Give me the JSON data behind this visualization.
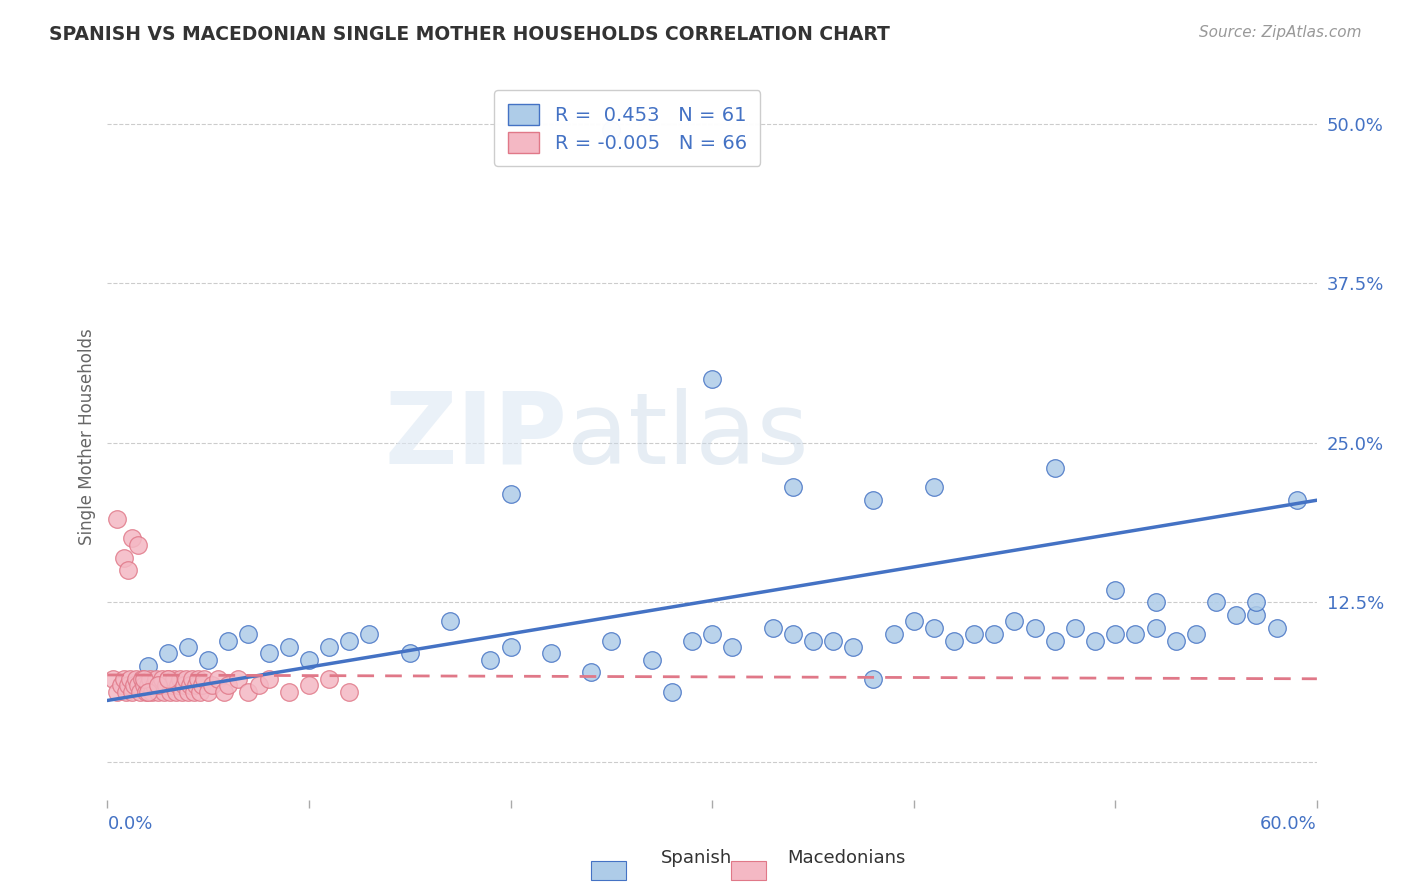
{
  "title": "SPANISH VS MACEDONIAN SINGLE MOTHER HOUSEHOLDS CORRELATION CHART",
  "source": "Source: ZipAtlas.com",
  "ylabel": "Single Mother Households",
  "yticks": [
    0.0,
    0.125,
    0.25,
    0.375,
    0.5
  ],
  "ytick_labels": [
    "",
    "12.5%",
    "25.0%",
    "37.5%",
    "50.0%"
  ],
  "xlim": [
    0.0,
    0.6
  ],
  "ylim": [
    -0.03,
    0.54
  ],
  "legend_R_spanish": "0.453",
  "legend_N_spanish": "61",
  "legend_R_macedonian": "-0.005",
  "legend_N_macedonian": "66",
  "spanish_color": "#aecce8",
  "macedonian_color": "#f4b8c4",
  "spanish_edge_color": "#4472c4",
  "macedonian_edge_color": "#e07888",
  "spanish_line_color": "#4472c4",
  "macedonian_line_color": "#e07888",
  "watermark_zip": "ZIP",
  "watermark_atlas": "atlas",
  "background_color": "#ffffff",
  "axis_color": "#4472c4",
  "grid_color": "#cccccc",
  "spanish_x": [
    0.02,
    0.03,
    0.04,
    0.05,
    0.06,
    0.07,
    0.08,
    0.09,
    0.1,
    0.11,
    0.12,
    0.13,
    0.15,
    0.17,
    0.19,
    0.2,
    0.22,
    0.24,
    0.25,
    0.27,
    0.28,
    0.29,
    0.3,
    0.31,
    0.33,
    0.34,
    0.35,
    0.36,
    0.37,
    0.38,
    0.39,
    0.4,
    0.41,
    0.42,
    0.43,
    0.44,
    0.45,
    0.46,
    0.47,
    0.48,
    0.49,
    0.5,
    0.51,
    0.52,
    0.53,
    0.54,
    0.55,
    0.56,
    0.57,
    0.58,
    0.34,
    0.38,
    0.41,
    0.5,
    0.57,
    0.59,
    0.52,
    0.47,
    0.3,
    0.2,
    0.25
  ],
  "spanish_y": [
    0.075,
    0.085,
    0.09,
    0.08,
    0.095,
    0.1,
    0.085,
    0.09,
    0.08,
    0.09,
    0.095,
    0.1,
    0.085,
    0.11,
    0.08,
    0.09,
    0.085,
    0.07,
    0.095,
    0.08,
    0.055,
    0.095,
    0.1,
    0.09,
    0.105,
    0.1,
    0.095,
    0.095,
    0.09,
    0.065,
    0.1,
    0.11,
    0.105,
    0.095,
    0.1,
    0.1,
    0.11,
    0.105,
    0.095,
    0.105,
    0.095,
    0.1,
    0.1,
    0.105,
    0.095,
    0.1,
    0.125,
    0.115,
    0.115,
    0.105,
    0.215,
    0.205,
    0.215,
    0.135,
    0.125,
    0.205,
    0.125,
    0.23,
    0.3,
    0.21,
    0.495
  ],
  "macedonian_x": [
    0.003,
    0.005,
    0.007,
    0.008,
    0.009,
    0.01,
    0.011,
    0.012,
    0.013,
    0.014,
    0.015,
    0.016,
    0.017,
    0.018,
    0.019,
    0.02,
    0.021,
    0.022,
    0.023,
    0.024,
    0.025,
    0.026,
    0.027,
    0.028,
    0.029,
    0.03,
    0.031,
    0.032,
    0.033,
    0.034,
    0.035,
    0.036,
    0.037,
    0.038,
    0.039,
    0.04,
    0.041,
    0.042,
    0.043,
    0.044,
    0.045,
    0.046,
    0.047,
    0.048,
    0.05,
    0.052,
    0.055,
    0.058,
    0.06,
    0.065,
    0.07,
    0.075,
    0.08,
    0.09,
    0.1,
    0.11,
    0.12,
    0.008,
    0.01,
    0.012,
    0.015,
    0.018,
    0.02,
    0.025,
    0.03,
    0.005
  ],
  "macedonian_y": [
    0.065,
    0.055,
    0.06,
    0.065,
    0.055,
    0.06,
    0.065,
    0.055,
    0.06,
    0.065,
    0.06,
    0.055,
    0.065,
    0.06,
    0.055,
    0.06,
    0.065,
    0.055,
    0.06,
    0.065,
    0.055,
    0.06,
    0.065,
    0.055,
    0.06,
    0.065,
    0.055,
    0.06,
    0.065,
    0.055,
    0.06,
    0.065,
    0.055,
    0.06,
    0.065,
    0.055,
    0.06,
    0.065,
    0.055,
    0.06,
    0.065,
    0.055,
    0.06,
    0.065,
    0.055,
    0.06,
    0.065,
    0.055,
    0.06,
    0.065,
    0.055,
    0.06,
    0.065,
    0.055,
    0.06,
    0.065,
    0.055,
    0.16,
    0.15,
    0.175,
    0.17,
    0.065,
    0.055,
    0.06,
    0.065,
    0.19
  ],
  "spanish_trend": [
    0.048,
    0.205
  ],
  "macedonian_trend": [
    0.068,
    0.065
  ]
}
